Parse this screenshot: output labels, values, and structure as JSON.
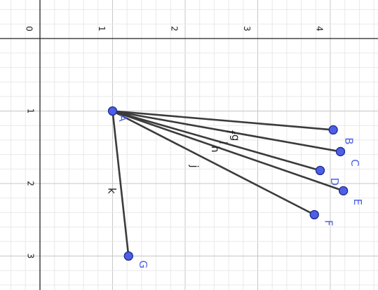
{
  "app": {
    "view": "graphics"
  },
  "colors": {
    "point": "#4c5fe6",
    "point_stroke": "#1f2a8c",
    "point_label": "#4c5fe6",
    "segment": "#3b3b3b"
  },
  "axes": {
    "orientation": "rotated",
    "grid": true,
    "tick_labels": [
      "0",
      "1",
      "2",
      "3",
      "4"
    ],
    "vertical_tick_labels": [
      "1",
      "2",
      "3"
    ]
  },
  "points": [
    {
      "name": "A",
      "x": 1.0,
      "y": 1.0
    },
    {
      "name": "B",
      "x": 4.04,
      "y": 1.26
    },
    {
      "name": "C",
      "x": 4.14,
      "y": 1.56
    },
    {
      "name": "D",
      "x": 3.86,
      "y": 1.82
    },
    {
      "name": "E",
      "x": 4.18,
      "y": 2.1
    },
    {
      "name": "F",
      "x": 3.78,
      "y": 2.43
    },
    {
      "name": "G",
      "x": 1.22,
      "y": 3.0
    }
  ],
  "segments": [
    {
      "name": "f",
      "from": "A",
      "to": "B"
    },
    {
      "name": "g",
      "from": "A",
      "to": "C"
    },
    {
      "name": "h",
      "from": "A",
      "to": "D"
    },
    {
      "name": "i",
      "from": "A",
      "to": "E"
    },
    {
      "name": "j",
      "from": "A",
      "to": "F"
    },
    {
      "name": "k",
      "from": "A",
      "to": "G"
    }
  ]
}
